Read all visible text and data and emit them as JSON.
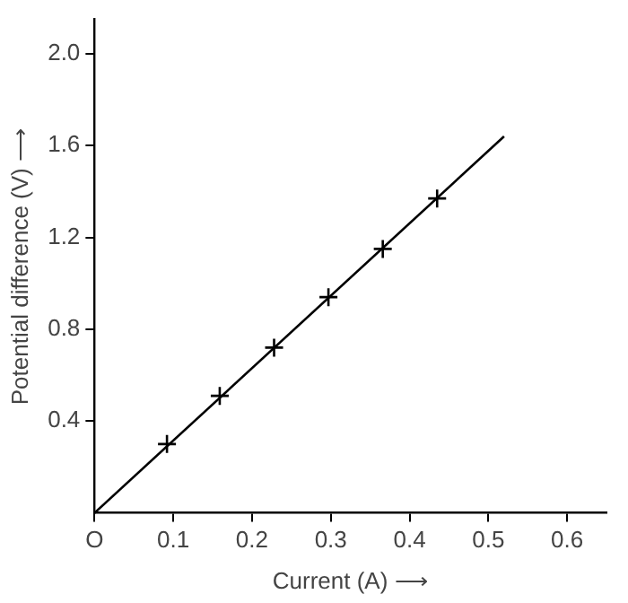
{
  "chart_data": {
    "type": "scatter",
    "xlabel": "Current (A) ⟶",
    "ylabel": "Potential difference (V) ⟶",
    "xlim": [
      0,
      0.65
    ],
    "ylim": [
      0,
      2.15
    ],
    "xticks": [
      {
        "value": 0,
        "label": "O"
      },
      0.1,
      0.2,
      0.3,
      0.4,
      0.5,
      0.6
    ],
    "yticks": [
      0.4,
      0.8,
      1.2,
      1.6,
      {
        "value": 2,
        "label": "2.0"
      }
    ],
    "grid": false,
    "legend": false,
    "series": [
      {
        "type": "scatter",
        "color": "#000000",
        "marker": "cross",
        "x": [
          0.092,
          0.159,
          0.228,
          0.297,
          0.366,
          0.435
        ],
        "values": [
          0.3,
          0.51,
          0.72,
          0.94,
          1.15,
          1.37
        ]
      },
      {
        "type": "line",
        "color": "#000000",
        "marker": "none",
        "line_style": "solid",
        "x": [
          0,
          0.52
        ],
        "values": [
          0,
          1.64
        ]
      }
    ]
  }
}
